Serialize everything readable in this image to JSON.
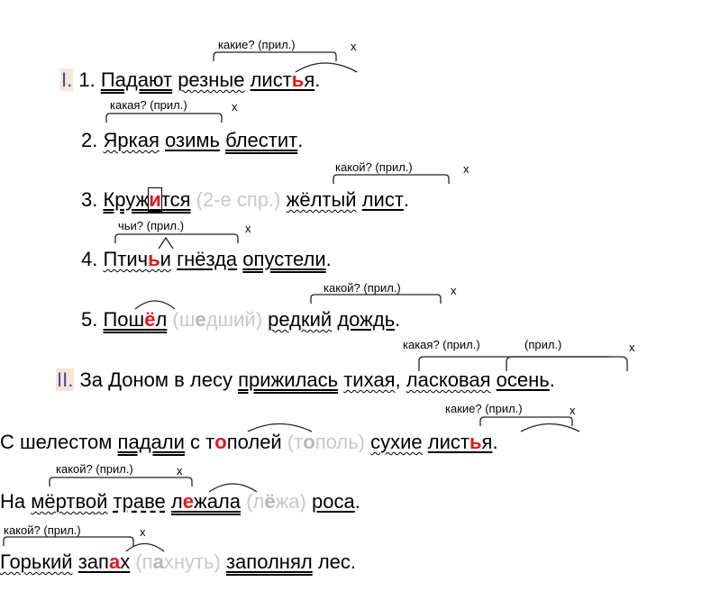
{
  "lines": {
    "l1": {
      "roman": "I.",
      "num": "1.",
      "w1": "Падают",
      "w2": "резные",
      "w3a": "лист",
      "w3b": "ь",
      "w3c": "я",
      "end": "."
    },
    "l2": {
      "num": "2.",
      "w1": "Яркая",
      "w2": "озимь",
      "w3": "блестит",
      "end": "."
    },
    "l3": {
      "num": "3.",
      "w1a": "Круж",
      "w1b": "и",
      "w1c": "тся",
      "note": "(2-е спр.)",
      "w2": "жёлтый",
      "w3": "лист",
      "end": "."
    },
    "l4": {
      "num": "4.",
      "w1a": "Птич",
      "w1b": "ь",
      "w1c": "и",
      "w2": "гнёзда",
      "w3": "опустели",
      "end": "."
    },
    "l5": {
      "num": "5.",
      "w1a": "Пош",
      "w1b": "ё",
      "w1c": "л",
      "note_a": "(ш",
      "note_b": "е",
      "note_c": "дший)",
      "w2": "редкий",
      "w3": "дождь",
      "end": "."
    },
    "l6": {
      "roman": "II.",
      "t1": "За Доном в лесу",
      "w1": "прижилась",
      "w2": "тихая",
      "comma": ",",
      "w3": "ласковая",
      "w4": "осень",
      "end": "."
    },
    "l7": {
      "t1": "С шелестом",
      "w1": "падали",
      "t2": "с",
      "w2a": "т",
      "w2b": "о",
      "w2c": "полей",
      "note_a": "(т",
      "note_b": "о",
      "note_c": "поль)",
      "w3": "сухие",
      "w4a": "лист",
      "w4b": "ь",
      "w4c": "я",
      "end": "."
    },
    "l8": {
      "t1": "На",
      "w1": "мёртвой",
      "w2": "траве",
      "w3a": "л",
      "w3b": "е",
      "w3c": "жала",
      "note_a": "(л",
      "note_b": "ё",
      "note_c": "жа)",
      "w4": "роса",
      "end": "."
    },
    "l9": {
      "w1": "Горький",
      "w2a": "зап",
      "w2b": "а",
      "w2c": "х",
      "note_a": "(п",
      "note_b": "а",
      "note_c": "хнуть)",
      "w3": "заполнял",
      "t1": "лес",
      "end": "."
    }
  },
  "labels": {
    "q1": "какие? (прил.)",
    "q2": "какая? (прил.)",
    "q3": "какой? (прил.)",
    "q4": "чьи? (прил.)",
    "q5": "какой? (прил.)",
    "q6a": "какая? (прил.)",
    "q6b": "(прил.)",
    "q7": "какие? (прил.)",
    "q8": "какой? (прил.)",
    "q9": "какой? (прил.)",
    "x": "х"
  },
  "colors": {
    "accent_red": "#e8141b",
    "note_gray": "#c8c8c8",
    "roman_bg": "#fbe5d4",
    "roman_text": "#3355aa"
  }
}
